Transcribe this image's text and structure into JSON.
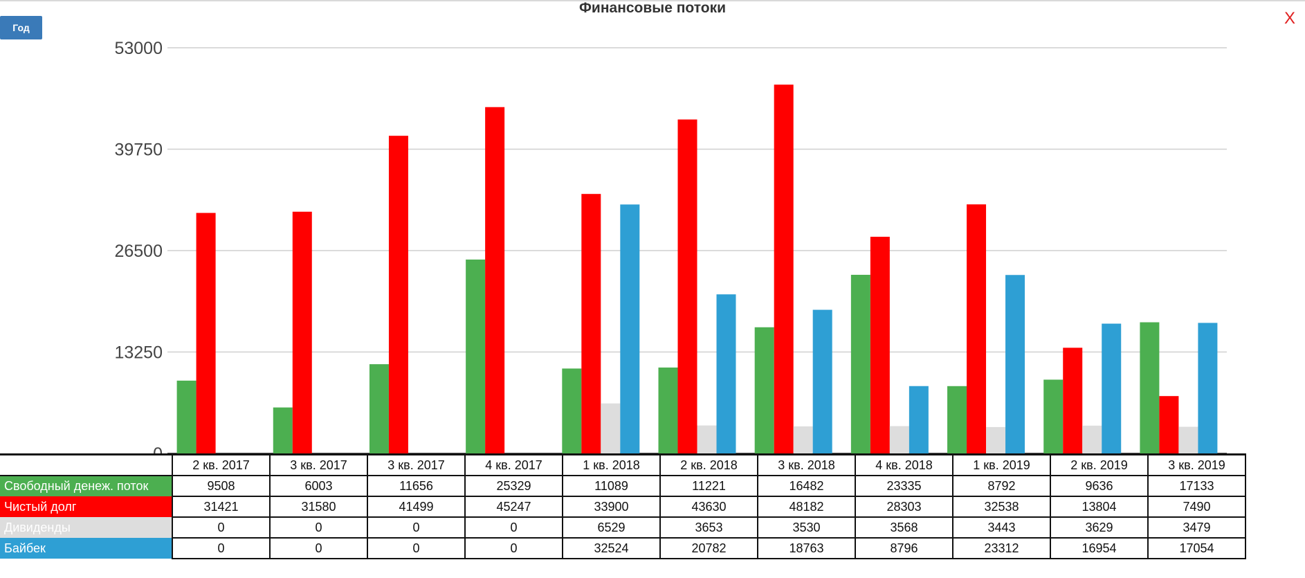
{
  "title": "Финансовые потоки",
  "year_button": "Год",
  "close_label": "X",
  "chart_data": {
    "type": "bar",
    "title": "Финансовые потоки",
    "ylim": [
      0,
      53000
    ],
    "yticks": [
      "0",
      "13250",
      "26500",
      "39750",
      "53000"
    ],
    "grid": true,
    "categories": [
      "2 кв. 2017",
      "3 кв. 2017",
      "3 кв. 2017",
      "4 кв. 2017",
      "1 кв. 2018",
      "2 кв. 2018",
      "3 кв. 2018",
      "4 кв. 2018",
      "1 кв. 2019",
      "2 кв. 2019",
      "3 кв. 2019"
    ],
    "series": [
      {
        "name": "Свободный денеж. поток",
        "color": "#4caf50",
        "values": [
          9508,
          6003,
          11656,
          25329,
          11089,
          11221,
          16482,
          23335,
          8792,
          9636,
          17133
        ]
      },
      {
        "name": "Чистый долг",
        "color": "#ff0000",
        "values": [
          31421,
          31580,
          41499,
          45247,
          33900,
          43630,
          48182,
          28303,
          32538,
          13804,
          7490
        ]
      },
      {
        "name": "Дивиденды",
        "color": "#dddddd",
        "values": [
          0,
          0,
          0,
          0,
          6529,
          3653,
          3530,
          3568,
          3443,
          3629,
          3479
        ]
      },
      {
        "name": "Байбек",
        "color": "#2e9fd4",
        "values": [
          0,
          0,
          0,
          0,
          32524,
          20782,
          18763,
          8796,
          23312,
          16954,
          17054
        ]
      }
    ]
  }
}
